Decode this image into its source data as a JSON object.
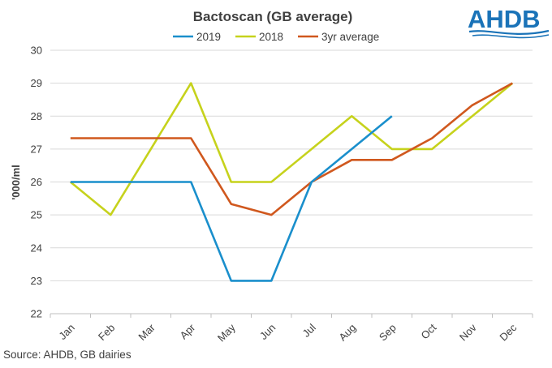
{
  "chart_data": {
    "type": "line",
    "title": "Bactoscan (GB average)",
    "ylabel": "'000/ml",
    "xlabel": "",
    "categories": [
      "Jan",
      "Feb",
      "Mar",
      "Apr",
      "May",
      "Jun",
      "Jul",
      "Aug",
      "Sep",
      "Oct",
      "Nov",
      "Dec"
    ],
    "ylim": [
      22,
      30
    ],
    "yticks": [
      22,
      23,
      24,
      25,
      26,
      27,
      28,
      29,
      30
    ],
    "grid": true,
    "legend_position": "top",
    "series": [
      {
        "name": "2019",
        "color": "#1a8fcc",
        "values": [
          26,
          26,
          26,
          26,
          23,
          23,
          26,
          27,
          28,
          null,
          null,
          null
        ]
      },
      {
        "name": "2018",
        "color": "#c6d21c",
        "values": [
          26,
          25,
          27,
          29,
          26,
          26,
          27,
          28,
          27,
          27,
          28,
          29
        ]
      },
      {
        "name": "3yr average",
        "color": "#d0581e",
        "values": [
          27.33,
          27.33,
          27.33,
          27.33,
          25.33,
          25,
          26,
          26.67,
          26.67,
          27.33,
          28.33,
          29
        ]
      }
    ]
  },
  "logo": {
    "text": "AHDB",
    "color": "#1a73b8"
  },
  "source": "Source: AHDB, GB dairies"
}
